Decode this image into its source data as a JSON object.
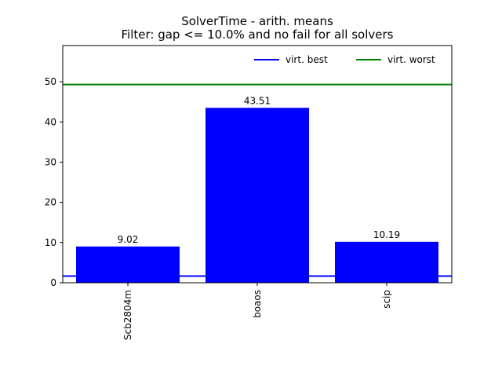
{
  "chart_data": {
    "type": "bar",
    "title": "SolverTime - arith. means",
    "subtitle": "Filter: gap <= 10.0% and no fail for all solvers",
    "categories": [
      "Scb2804m",
      "boaos",
      "scip"
    ],
    "values": [
      9.02,
      43.51,
      10.19
    ],
    "value_labels": [
      "9.02",
      "43.51",
      "10.19"
    ],
    "bar_color": "#0000ff",
    "ylim": [
      0,
      59
    ],
    "yticks": [
      0,
      10,
      20,
      30,
      40,
      50
    ],
    "xlabel": "",
    "ylabel": "",
    "grid": false,
    "legend_position": "top-right",
    "reference_lines": [
      {
        "name": "virt. best",
        "value": 1.65,
        "color": "#0000ff"
      },
      {
        "name": "virt. worst",
        "value": 49.3,
        "color": "#008000"
      }
    ]
  }
}
